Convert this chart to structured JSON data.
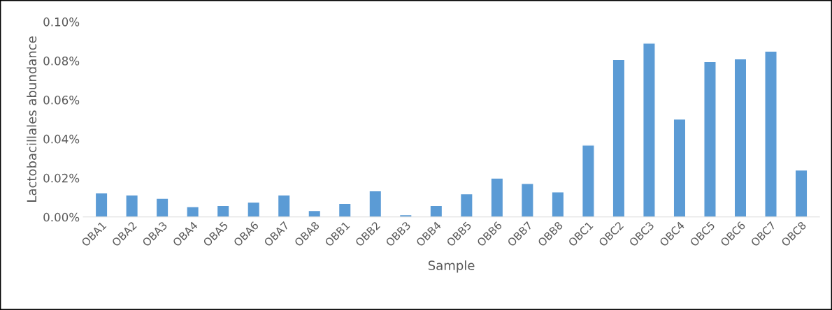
{
  "chart_data": {
    "type": "bar",
    "xlabel": "Sample",
    "ylabel": "Lactobacillales abundance",
    "categories": [
      "OBA1",
      "OBA2",
      "OBA3",
      "OBA4",
      "OBA5",
      "OBA6",
      "OBA7",
      "OBA8",
      "OBB1",
      "OBB2",
      "OBB3",
      "OBB4",
      "OBB5",
      "OBB6",
      "OBB7",
      "OBB8",
      "OBC1",
      "OBC2",
      "OBC3",
      "OBC4",
      "OBC5",
      "OBC6",
      "OBC7",
      "OBC8"
    ],
    "values": [
      0.0123,
      0.0113,
      0.0096,
      0.0053,
      0.0059,
      0.0076,
      0.0113,
      0.0033,
      0.007,
      0.0134,
      0.0012,
      0.0059,
      0.0119,
      0.0199,
      0.0172,
      0.0129,
      0.0368,
      0.0806,
      0.089,
      0.0501,
      0.0795,
      0.081,
      0.0849,
      0.024
    ],
    "color": "#5b9bd5",
    "ylim": [
      0,
      0.1
    ],
    "yticks": [
      {
        "value": 0,
        "label": "0.00%"
      },
      {
        "value": 0.02,
        "label": "0.02%"
      },
      {
        "value": 0.04,
        "label": "0.04%"
      },
      {
        "value": 0.06,
        "label": "0.06%"
      },
      {
        "value": 0.08,
        "label": "0.08%"
      },
      {
        "value": 0.1,
        "label": "0.10%"
      }
    ],
    "grid": false
  }
}
